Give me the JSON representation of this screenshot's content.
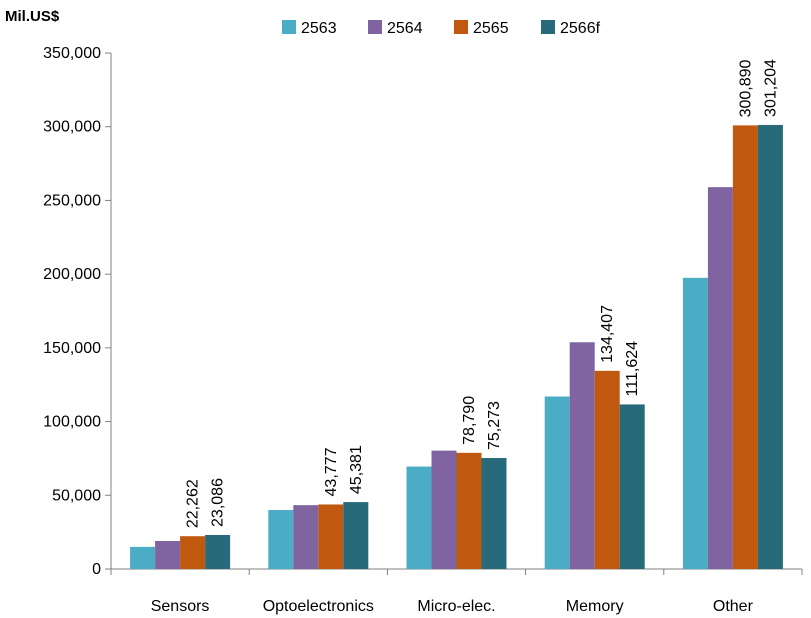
{
  "chart_data": {
    "type": "bar",
    "unit_label": "Mil.US$",
    "categories": [
      "Sensors",
      "Optoelectronics",
      "Micro-elec.",
      "Memory",
      "Other"
    ],
    "series": [
      {
        "name": "2563",
        "color": "#4bacc6",
        "values": [
          15000,
          40000,
          69500,
          117000,
          197500
        ]
      },
      {
        "name": "2564",
        "color": "#8064a2",
        "values": [
          19000,
          43300,
          80300,
          153800,
          259000
        ]
      },
      {
        "name": "2565",
        "color": "#c0590f",
        "values": [
          22262,
          43777,
          78790,
          134407,
          300890
        ]
      },
      {
        "name": "2566f",
        "color": "#276b7a",
        "values": [
          23086,
          45381,
          75273,
          111624,
          301204
        ]
      }
    ],
    "data_labels": [
      {
        "category_index": 0,
        "series_index": 2,
        "text": "22,262"
      },
      {
        "category_index": 0,
        "series_index": 3,
        "text": "23,086"
      },
      {
        "category_index": 1,
        "series_index": 2,
        "text": "43,777"
      },
      {
        "category_index": 1,
        "series_index": 3,
        "text": "45,381"
      },
      {
        "category_index": 2,
        "series_index": 2,
        "text": "78,790"
      },
      {
        "category_index": 2,
        "series_index": 3,
        "text": "75,273"
      },
      {
        "category_index": 3,
        "series_index": 2,
        "text": "134,407"
      },
      {
        "category_index": 3,
        "series_index": 3,
        "text": "111,624"
      },
      {
        "category_index": 4,
        "series_index": 2,
        "text": "300,890"
      },
      {
        "category_index": 4,
        "series_index": 3,
        "text": "301,204"
      }
    ],
    "y_ticks": [
      0,
      50000,
      100000,
      150000,
      200000,
      250000,
      300000,
      350000
    ],
    "y_tick_labels": [
      "0",
      "50,000",
      "100,000",
      "150,000",
      "200,000",
      "250,000",
      "300,000",
      "350,000"
    ],
    "ylim": [
      0,
      350000
    ],
    "grid": false,
    "legend_position": "top"
  }
}
